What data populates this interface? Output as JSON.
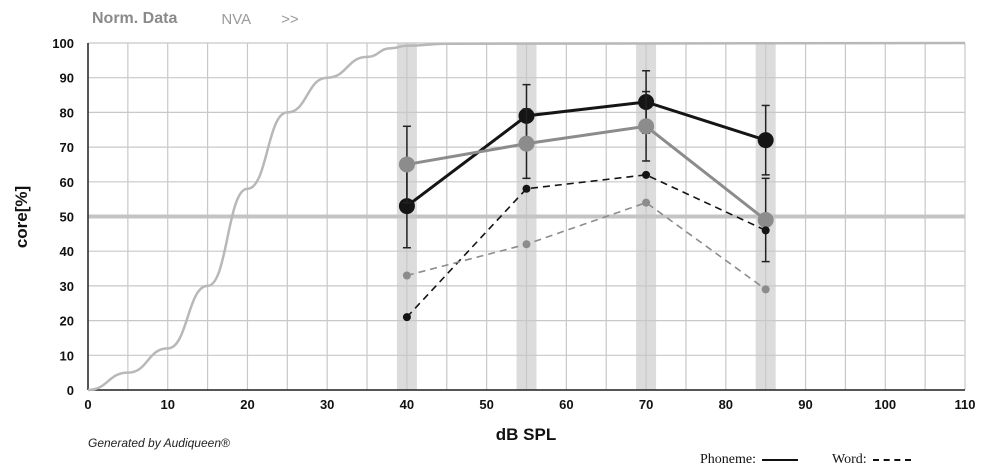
{
  "header": {
    "tab_norm": "Norm. Data",
    "tab_nva": "NVA",
    "tab_more": ">>"
  },
  "credit": "Generated by Audiqueen®",
  "legend": {
    "phoneme_label": "Phoneme:",
    "word_label": "Word:"
  },
  "colors": {
    "dark": "#151515",
    "gray": "#8c8c8c",
    "light": "#b8b8b8",
    "grid": "#c8c8c8",
    "band": "#dcdcdc",
    "threshold": "#c4c4c4"
  },
  "chart_data": {
    "type": "line",
    "xlabel": "dB SPL",
    "ylabel": "core[%]",
    "xlim": [
      0,
      110
    ],
    "ylim": [
      0,
      100
    ],
    "x_ticks": [
      0,
      10,
      20,
      30,
      40,
      50,
      60,
      70,
      80,
      90,
      100,
      110
    ],
    "y_ticks": [
      0,
      10,
      20,
      30,
      40,
      50,
      60,
      70,
      80,
      90,
      100
    ],
    "grid": true,
    "reference_line": 50,
    "highlight_bands": [
      40,
      55,
      70,
      85
    ],
    "series": [
      {
        "style": "reference-curve",
        "color": "#b8b8b8",
        "x": [
          0,
          5,
          10,
          15,
          20,
          25,
          30,
          35,
          38,
          40,
          45,
          110
        ],
        "y": [
          0,
          5,
          12,
          30,
          58,
          80,
          90,
          96,
          98.5,
          99.2,
          99.8,
          100
        ]
      },
      {
        "style": "solid-dark",
        "color": "#151515",
        "x": [
          40,
          55,
          70,
          85
        ],
        "y": [
          53,
          79,
          83,
          72
        ],
        "err": [
          12,
          9,
          9,
          10
        ]
      },
      {
        "style": "solid-gray",
        "color": "#8c8c8c",
        "x": [
          40,
          55,
          70,
          85
        ],
        "y": [
          65,
          71,
          76,
          49
        ],
        "err": [
          11,
          10,
          10,
          12
        ]
      },
      {
        "style": "dashed-dark",
        "color": "#151515",
        "x": [
          40,
          55,
          70,
          85
        ],
        "y": [
          21,
          58,
          62,
          46
        ]
      },
      {
        "style": "dashed-gray",
        "color": "#8c8c8c",
        "x": [
          40,
          55,
          70,
          85
        ],
        "y": [
          33,
          42,
          54,
          29
        ]
      }
    ]
  }
}
